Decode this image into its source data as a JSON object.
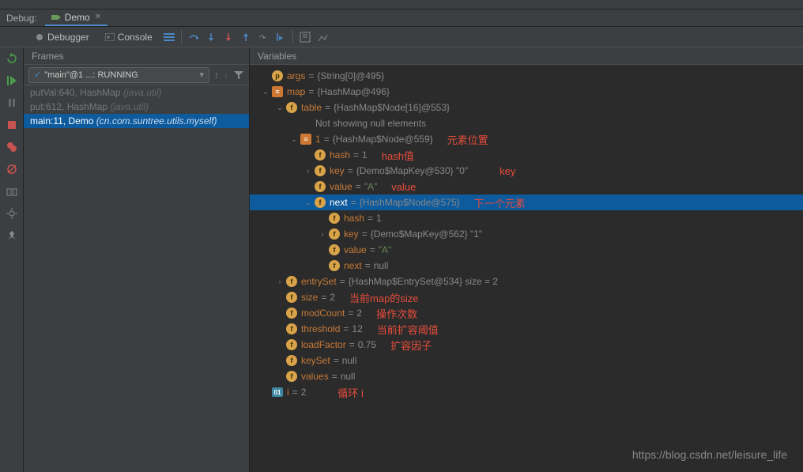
{
  "debug_label": "Debug:",
  "tab": {
    "name": "Demo"
  },
  "toolbar": {
    "debugger": "Debugger",
    "console": "Console"
  },
  "frames": {
    "title": "Frames",
    "thread": "\"main\"@1 ...: RUNNING",
    "stack": [
      {
        "loc": "putVal:640, HashMap",
        "pkg": "(java.util)",
        "dim": true
      },
      {
        "loc": "put:612, HashMap",
        "pkg": "(java.util)",
        "dim": true
      },
      {
        "loc": "main:11, Demo",
        "pkg": "(cn.com.suntree.utils.myself)",
        "selected": true
      }
    ]
  },
  "variables": {
    "title": "Variables",
    "rows": [
      {
        "indent": 0,
        "arrow": "none",
        "badge": "p",
        "bl": "p",
        "name": "args",
        "eq": " = ",
        "val": "{String[0]@495}",
        "valcls": "vval"
      },
      {
        "indent": 0,
        "arrow": "down",
        "badge": "obj",
        "bl": "≡",
        "name": "map",
        "eq": " = ",
        "val": "{HashMap@496}",
        "valcls": "vval"
      },
      {
        "indent": 1,
        "arrow": "down",
        "badge": "f",
        "bl": "f",
        "name": "table",
        "eq": " = ",
        "val": "{HashMap$Node[16]@553}",
        "valcls": "vval"
      },
      {
        "indent": 2,
        "arrow": "none",
        "badge": "",
        "bl": "",
        "name": "",
        "eq": "",
        "val": "Not showing null elements",
        "valcls": "vval"
      },
      {
        "indent": 2,
        "arrow": "down",
        "badge": "obj",
        "bl": "≡",
        "name": "1",
        "eq": " = ",
        "val": "{HashMap$Node@559}",
        "valcls": "vval",
        "annot": "元素位置"
      },
      {
        "indent": 3,
        "arrow": "none",
        "badge": "f",
        "bl": "f",
        "name": "hash",
        "eq": " = ",
        "val": "1",
        "valcls": "vval",
        "annot": "hash值"
      },
      {
        "indent": 3,
        "arrow": "right",
        "badge": "f",
        "bl": "f",
        "name": "key",
        "eq": " = ",
        "val": "{Demo$MapKey@530} \"0\"",
        "valcls": "vval",
        "annot": "key",
        "annotcls": "right"
      },
      {
        "indent": 3,
        "arrow": "none",
        "badge": "f",
        "bl": "f",
        "name": "value",
        "eq": " = ",
        "val": "\"A\"",
        "valcls": "vstr",
        "annot": "value"
      },
      {
        "indent": 3,
        "arrow": "down",
        "badge": "f",
        "bl": "f",
        "name": "next",
        "eq": " = ",
        "val": "{HashMap$Node@575}",
        "valcls": "vval",
        "sel": true,
        "annot": "下一个元素"
      },
      {
        "indent": 4,
        "arrow": "none",
        "badge": "f",
        "bl": "f",
        "name": "hash",
        "eq": " = ",
        "val": "1",
        "valcls": "vval"
      },
      {
        "indent": 4,
        "arrow": "right",
        "badge": "f",
        "bl": "f",
        "name": "key",
        "eq": " = ",
        "val": "{Demo$MapKey@562} \"1\"",
        "valcls": "vval"
      },
      {
        "indent": 4,
        "arrow": "none",
        "badge": "f",
        "bl": "f",
        "name": "value",
        "eq": " = ",
        "val": "\"A\"",
        "valcls": "vstr"
      },
      {
        "indent": 4,
        "arrow": "none",
        "badge": "f",
        "bl": "f",
        "name": "next",
        "eq": " = ",
        "val": "null",
        "valcls": "vval"
      },
      {
        "indent": 1,
        "arrow": "right",
        "badge": "f",
        "bl": "f",
        "name": "entrySet",
        "eq": " = ",
        "val": "{HashMap$EntrySet@534}  size = 2",
        "valcls": "vval"
      },
      {
        "indent": 1,
        "arrow": "none",
        "badge": "f",
        "bl": "f",
        "name": "size",
        "eq": " = ",
        "val": "2",
        "valcls": "vval",
        "annot": "当前map的size"
      },
      {
        "indent": 1,
        "arrow": "none",
        "badge": "f",
        "bl": "f",
        "name": "modCount",
        "eq": " = ",
        "val": "2",
        "valcls": "vval",
        "annot": "操作次数"
      },
      {
        "indent": 1,
        "arrow": "none",
        "badge": "f",
        "bl": "f",
        "name": "threshold",
        "eq": " = ",
        "val": "12",
        "valcls": "vval",
        "annot": "当前扩容阈值"
      },
      {
        "indent": 1,
        "arrow": "none",
        "badge": "f",
        "bl": "f",
        "name": "loadFactor",
        "eq": " = ",
        "val": "0.75",
        "valcls": "vval",
        "annot": "扩容因子"
      },
      {
        "indent": 1,
        "arrow": "none",
        "badge": "f",
        "bl": "f",
        "name": "keySet",
        "eq": " = ",
        "val": "null",
        "valcls": "vval"
      },
      {
        "indent": 1,
        "arrow": "none",
        "badge": "f",
        "bl": "f",
        "name": "values",
        "eq": " = ",
        "val": "null",
        "valcls": "vval"
      },
      {
        "indent": 0,
        "arrow": "none",
        "badge": "int",
        "bl": "01",
        "name": "i",
        "eq": " = ",
        "val": "2",
        "valcls": "vval",
        "annot": "循环 i",
        "annotcls": "right"
      }
    ]
  },
  "watermark": "https://blog.csdn.net/leisure_life",
  "colors": {
    "bg": "#2b2b2b",
    "panel": "#3c3f41",
    "sel": "#0d5a9c",
    "varname": "#c77a39",
    "string": "#6a8759",
    "annot": "#e74c3c"
  }
}
